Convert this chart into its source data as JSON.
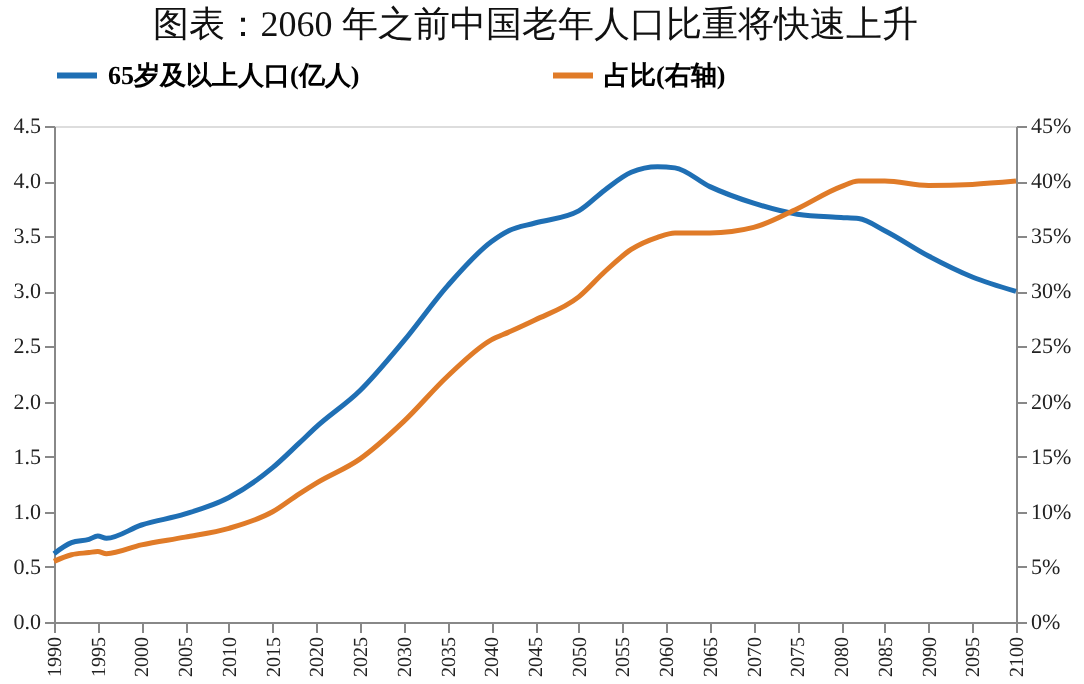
{
  "chart_data": {
    "type": "line",
    "title": "图表：2060 年之前中国老年人口比重将快速上升",
    "x": [
      1990,
      1992,
      1994,
      1995,
      1996,
      2000,
      2005,
      2010,
      2015,
      2018,
      2020,
      2025,
      2030,
      2035,
      2040,
      2042,
      2045,
      2050,
      2053,
      2056,
      2059,
      2061,
      2065,
      2070,
      2075,
      2080,
      2082,
      2085,
      2090,
      2095,
      2100
    ],
    "series": [
      {
        "name": "65岁及以上人口(亿人)",
        "color": "#1f6fb4",
        "values": [
          0.62,
          0.72,
          0.75,
          0.78,
          0.76,
          0.88,
          0.98,
          1.13,
          1.4,
          1.62,
          1.77,
          2.1,
          2.55,
          3.05,
          3.45,
          3.55,
          3.62,
          3.73,
          3.92,
          4.08,
          4.13,
          4.12,
          3.95,
          3.8,
          3.7,
          3.67,
          3.66,
          3.55,
          3.32,
          3.13,
          3.0
        ]
      },
      {
        "name": "占比(右轴)",
        "color": "#e07b28",
        "axis": "y2",
        "values": [
          5.5,
          6.1,
          6.3,
          6.4,
          6.2,
          7.0,
          7.7,
          8.5,
          10.0,
          11.6,
          12.6,
          14.8,
          18.2,
          22.3,
          25.6,
          26.3,
          27.4,
          29.5,
          31.8,
          33.8,
          34.9,
          35.3,
          35.3,
          35.8,
          37.5,
          39.5,
          40.0,
          40.0,
          39.6,
          39.7,
          40.0
        ]
      }
    ],
    "xlim": [
      1990,
      2100
    ],
    "xticks": [
      1990,
      1995,
      2000,
      2005,
      2010,
      2015,
      2020,
      2025,
      2030,
      2035,
      2040,
      2045,
      2050,
      2055,
      2060,
      2065,
      2070,
      2075,
      2080,
      2085,
      2090,
      2095,
      2100
    ],
    "ylim": [
      0,
      4.5
    ],
    "yticks": [
      {
        "value": 0,
        "label": "0.0"
      },
      {
        "value": 0.5,
        "label": "0.5"
      },
      {
        "value": 1,
        "label": "1.0"
      },
      {
        "value": 1.5,
        "label": "1.5"
      },
      {
        "value": 2,
        "label": "2.0"
      },
      {
        "value": 2.5,
        "label": "2.5"
      },
      {
        "value": 3,
        "label": "3.0"
      },
      {
        "value": 3.5,
        "label": "3.5"
      },
      {
        "value": 4,
        "label": "4.0"
      },
      {
        "value": 4.5,
        "label": "4.5"
      }
    ],
    "y2lim": [
      0,
      45
    ],
    "y2ticks": [
      {
        "value": 0,
        "label": "0%"
      },
      {
        "value": 5,
        "label": "5%"
      },
      {
        "value": 10,
        "label": "10%"
      },
      {
        "value": 15,
        "label": "15%"
      },
      {
        "value": 20,
        "label": "20%"
      },
      {
        "value": 25,
        "label": "25%"
      },
      {
        "value": 30,
        "label": "30%"
      },
      {
        "value": 35,
        "label": "35%"
      },
      {
        "value": 40,
        "label": "40%"
      },
      {
        "value": 45,
        "label": "45%"
      }
    ],
    "grid": false,
    "legend": "top",
    "marker": "none",
    "line_style": "solid"
  }
}
